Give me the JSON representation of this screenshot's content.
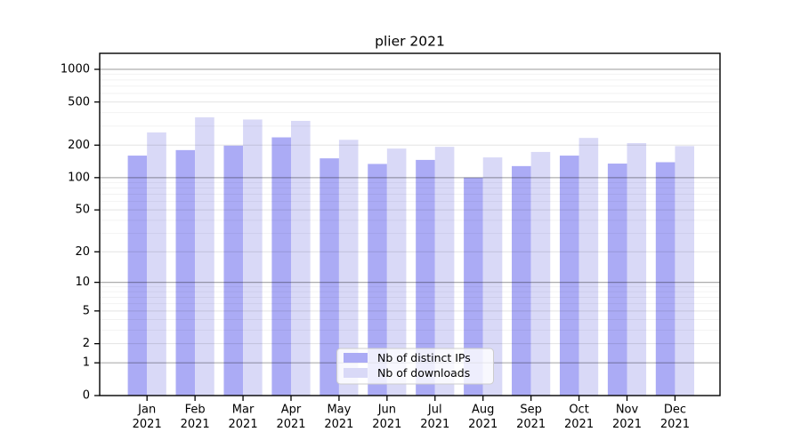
{
  "chart_data": {
    "type": "bar",
    "title": "plier 2021",
    "categories": [
      "Jan",
      "Feb",
      "Mar",
      "Apr",
      "May",
      "Jun",
      "Jul",
      "Aug",
      "Sep",
      "Oct",
      "Nov",
      "Dec"
    ],
    "category_sublabel": "2021",
    "series": [
      {
        "name": "Nb of distinct IPs",
        "color": "#ababf5",
        "values": [
          160,
          180,
          198,
          236,
          151,
          134,
          146,
          100,
          128,
          160,
          135,
          139
        ]
      },
      {
        "name": "Nb of downloads",
        "color": "#d9d9f7",
        "values": [
          262,
          361,
          345,
          335,
          224,
          186,
          193,
          154,
          173,
          233,
          209,
          196
        ]
      }
    ],
    "y_ticks": [
      0,
      1,
      2,
      5,
      10,
      20,
      50,
      100,
      200,
      500,
      1000
    ],
    "y_scale": "log1p",
    "ylim": [
      0,
      1000
    ],
    "xlabel": "",
    "ylabel": "",
    "grid": "horizontal",
    "major_grid_at": [
      1,
      10,
      100,
      1000
    ],
    "legend_position": "bottom-center",
    "colors": {
      "background": "#ffffff",
      "axis": "#000000",
      "major_grid": "#b3b3b3",
      "regular_grid": "#e6e6e6",
      "minor_grid": "#f4f4f4",
      "legend_border": "#cccccc",
      "legend_background": "#ffffff"
    }
  }
}
